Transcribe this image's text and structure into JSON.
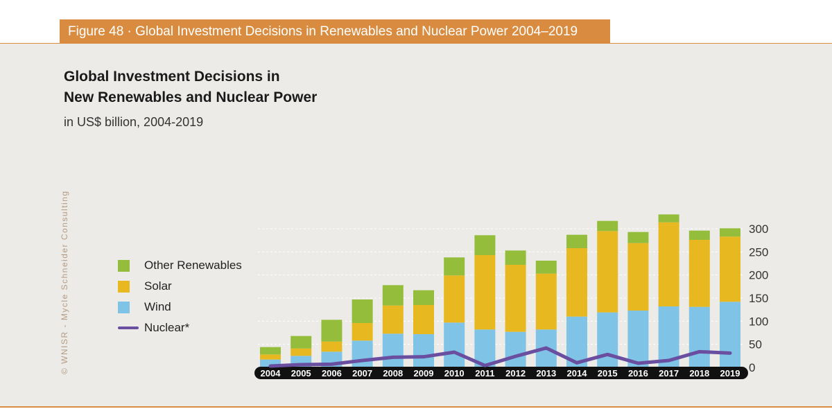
{
  "header": {
    "figure_label": "Figure 48 · Global Investment Decisions in Renewables and Nuclear Power 2004–2019"
  },
  "title_line1": "Global Investment Decisions in",
  "title_line2": "New Renewables and Nuclear Power",
  "subtitle": "in US$ billion, 2004-2019",
  "copyright": "© WNISR - Mycle Schneider Consulting",
  "colors": {
    "wind": "#7fc3e6",
    "solar": "#e8b820",
    "other": "#94bd3c",
    "nuclear": "#6a4fa0",
    "header": "#d98c3f"
  },
  "legend": {
    "other_label": "Other Renewables",
    "solar_label": "Solar",
    "wind_label": "Wind",
    "nuclear_label": "Nuclear*"
  },
  "chart_data": {
    "type": "bar",
    "stacked": true,
    "title": "Global Investment Decisions in New Renewables and Nuclear Power",
    "subtitle": "in US$ billion, 2004-2019",
    "categories": [
      "2004",
      "2005",
      "2006",
      "2007",
      "2008",
      "2009",
      "2010",
      "2011",
      "2012",
      "2013",
      "2014",
      "2015",
      "2016",
      "2017",
      "2018",
      "2019"
    ],
    "series": [
      {
        "name": "Wind",
        "type": "bar",
        "values": [
          17,
          25,
          34,
          58,
          73,
          72,
          97,
          82,
          77,
          82,
          110,
          119,
          123,
          132,
          131,
          142
        ]
      },
      {
        "name": "Solar",
        "type": "bar",
        "values": [
          11,
          16,
          22,
          38,
          61,
          63,
          102,
          161,
          145,
          121,
          148,
          176,
          146,
          182,
          145,
          141
        ]
      },
      {
        "name": "Other Renewables",
        "type": "bar",
        "values": [
          16,
          27,
          47,
          51,
          44,
          32,
          39,
          43,
          31,
          28,
          29,
          22,
          24,
          17,
          20,
          18
        ]
      },
      {
        "name": "Nuclear*",
        "type": "line",
        "values": [
          3,
          6,
          7,
          15,
          22,
          23,
          33,
          4,
          24,
          42,
          10,
          28,
          9,
          15,
          34,
          31
        ]
      }
    ],
    "yticks": [
      0,
      50,
      100,
      150,
      200,
      250,
      300
    ],
    "ylim": [
      0,
      340
    ],
    "y_axis_side": "right",
    "xlabel": "",
    "ylabel": ""
  }
}
